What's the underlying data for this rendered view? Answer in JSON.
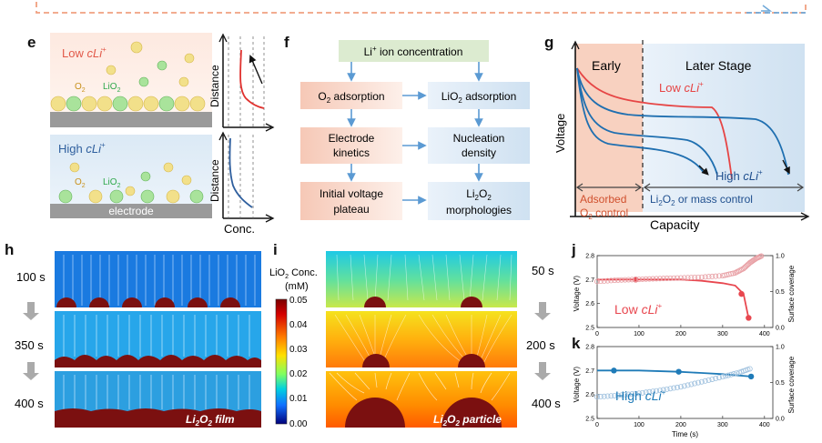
{
  "panels": {
    "e": {
      "letter": "e",
      "top_label_prefix": "Low ",
      "bottom_label_prefix": "High ",
      "c_label": "cLi",
      "plus": "+",
      "o2": "O",
      "o2_sub": "2",
      "lio2": "LiO",
      "lio2_sub": "2",
      "electrode": "electrode",
      "ylabel": "Distance",
      "xlabel": "Conc."
    },
    "f": {
      "letter": "f",
      "top": {
        "text": "Li",
        "sup": "+",
        "rest": " ion concentration"
      },
      "left": [
        {
          "a": "O",
          "sub": "2",
          "b": " adsorption"
        },
        {
          "line1": "Electrode",
          "line2": "kinetics"
        },
        {
          "line1": "Initial voltage",
          "line2": "plateau"
        }
      ],
      "right": [
        {
          "a": "LiO",
          "sub": "2",
          "b": " adsorption"
        },
        {
          "line1": "Nucleation",
          "line2": "density"
        },
        {
          "a": "Li",
          "sub": "2",
          "b": "O",
          "sub2": "2",
          "line2": "morphologies"
        }
      ]
    },
    "g": {
      "letter": "g",
      "early": "Early",
      "later": "Later Stage",
      "low_prefix": "Low ",
      "high_prefix": "High ",
      "c_label": "cLi",
      "plus": "+",
      "ylabel": "Voltage",
      "xlabel": "Capacity",
      "adsorbed1": "Adsorbed",
      "adsorbed2a": "O",
      "adsorbed2sub": "2",
      "adsorbed2b": " control",
      "later_ctrl_a": "Li",
      "later_ctrl_sub": "2",
      "later_ctrl_b": "O",
      "later_ctrl_sub2": "2",
      "later_ctrl_c": " or mass control"
    },
    "h": {
      "letter": "h",
      "times": [
        "100 s",
        "350 s",
        "400 s"
      ],
      "label_a": "Li",
      "label_sub": "2",
      "label_b": "O",
      "label_sub2": "2",
      "label_c": " film"
    },
    "i": {
      "letter": "i",
      "times": [
        "50 s",
        "200 s",
        "400 s"
      ],
      "label_a": "Li",
      "label_sub": "2",
      "label_b": "O",
      "label_sub2": "2",
      "label_c": " particle",
      "colorbar_title_a": "LiO",
      "colorbar_title_sub": "2",
      "colorbar_title_b": " Conc.",
      "colorbar_unit": "(mM)",
      "colorbar_ticks": [
        "0.05",
        "0.04",
        "0.03",
        "0.02",
        "0.01",
        "0.00"
      ]
    },
    "j": {
      "letter": "j",
      "legend_prefix": "Low ",
      "c_label": "cLi",
      "plus": "+"
    },
    "k": {
      "letter": "k",
      "legend_prefix": "High ",
      "c_label": "cLi",
      "plus": "+"
    }
  },
  "chart_data": [
    {
      "id": "j",
      "type": "line",
      "xlabel": "",
      "ylabel": "Voltage (V)",
      "y2label": "Surface coverage",
      "xlim": [
        0,
        420
      ],
      "ylim": [
        2.5,
        2.8
      ],
      "y2lim": [
        0,
        1.0
      ],
      "x_ticks": [
        "0",
        "100",
        "200",
        "300",
        "400"
      ],
      "y_ticks": [
        "2.5",
        "2.6",
        "2.7",
        "2.8"
      ],
      "y2_ticks": [
        "0.0",
        "0.5",
        "1.0"
      ],
      "series": [
        {
          "axis": "left",
          "color": "#e8474f",
          "x": [
            0,
            50,
            92,
            150,
            200,
            250,
            300,
            330,
            350,
            362
          ],
          "y": [
            2.7,
            2.7,
            2.7,
            2.7,
            2.7,
            2.695,
            2.685,
            2.675,
            2.64,
            2.54
          ],
          "markers": [
            [
              92,
              2.7
            ],
            [
              345,
              2.64
            ],
            [
              362,
              2.54
            ]
          ]
        },
        {
          "axis": "right",
          "color": "#e8a0a5",
          "style": "circles-open",
          "x": [
            0,
            50,
            100,
            150,
            200,
            250,
            300,
            330,
            350,
            365,
            380,
            395
          ],
          "y": [
            0.64,
            0.66,
            0.67,
            0.68,
            0.69,
            0.7,
            0.72,
            0.76,
            0.82,
            0.9,
            0.96,
            1.0
          ]
        }
      ]
    },
    {
      "id": "k",
      "type": "line",
      "xlabel": "Time (s)",
      "ylabel": "Voltage (V)",
      "y2label": "Surface coverage",
      "xlim": [
        0,
        420
      ],
      "ylim": [
        2.5,
        2.8
      ],
      "y2lim": [
        0,
        1.0
      ],
      "x_ticks": [
        "0",
        "100",
        "200",
        "300",
        "400"
      ],
      "y_ticks": [
        "2.5",
        "2.6",
        "2.7",
        "2.8"
      ],
      "y2_ticks": [
        "0.0",
        "0.5",
        "1.0"
      ],
      "series": [
        {
          "axis": "left",
          "color": "#1f7bb8",
          "x": [
            0,
            40,
            100,
            195,
            250,
            300,
            368
          ],
          "y": [
            2.7,
            2.7,
            2.7,
            2.695,
            2.69,
            2.685,
            2.675
          ],
          "markers": [
            [
              40,
              2.7
            ],
            [
              195,
              2.695
            ],
            [
              368,
              2.675
            ]
          ]
        },
        {
          "axis": "right",
          "color": "#9ec0de",
          "style": "circles-open",
          "x": [
            0,
            50,
            100,
            150,
            200,
            250,
            300,
            340,
            370
          ],
          "y": [
            0.3,
            0.32,
            0.35,
            0.39,
            0.44,
            0.51,
            0.58,
            0.64,
            0.7
          ]
        }
      ]
    }
  ]
}
